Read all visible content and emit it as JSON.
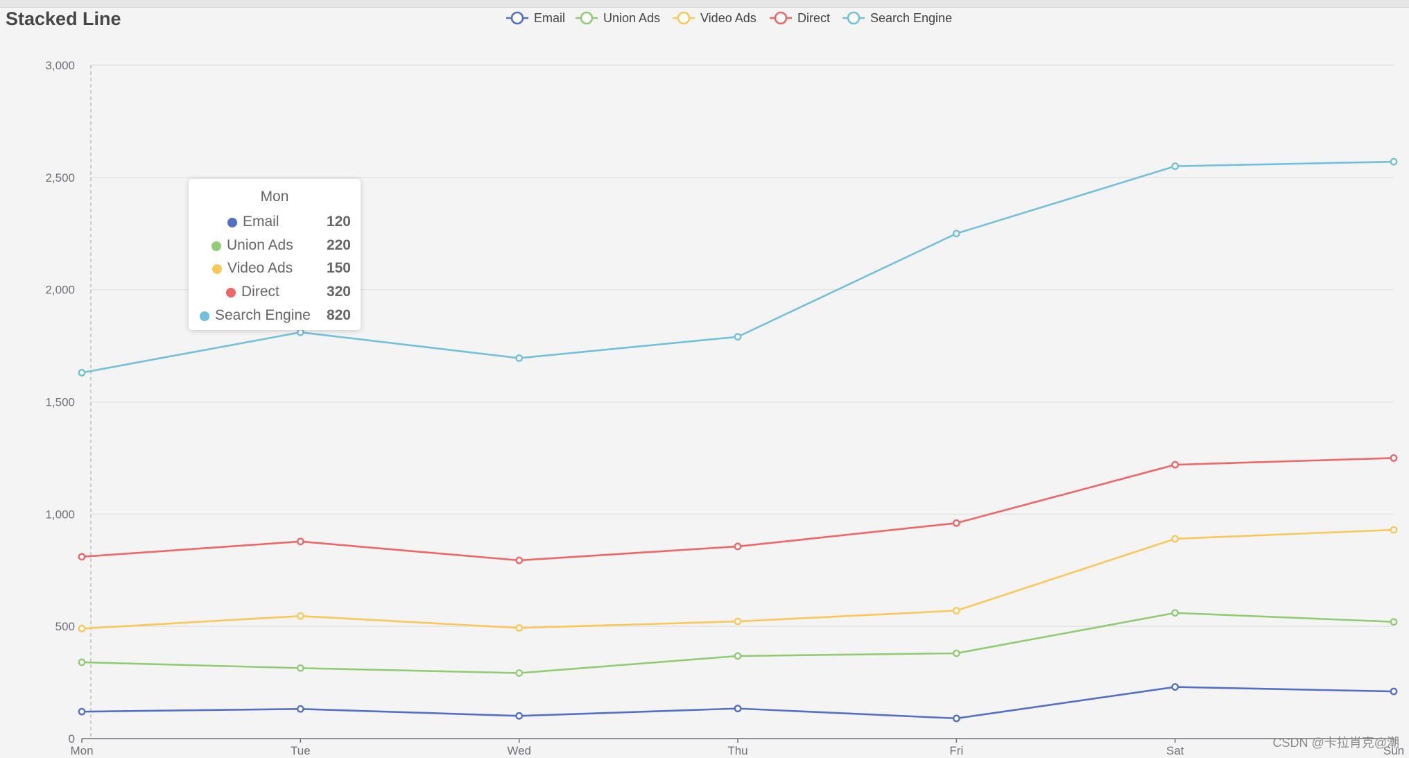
{
  "chart_data": {
    "type": "line",
    "title": "Stacked Line",
    "stacked": true,
    "categories": [
      "Mon",
      "Tue",
      "Wed",
      "Thu",
      "Fri",
      "Sat",
      "Sun"
    ],
    "ylim": [
      0,
      3000
    ],
    "y_ticks": [
      "0",
      "500",
      "1,000",
      "1,500",
      "2,000",
      "2,500",
      "3,000"
    ],
    "grid": true,
    "legend_position": "top-center",
    "series": [
      {
        "name": "Email",
        "color": "#5470c6",
        "values": [
          120,
          132,
          101,
          134,
          90,
          230,
          210
        ]
      },
      {
        "name": "Union Ads",
        "color": "#91cc75",
        "values": [
          220,
          182,
          191,
          234,
          290,
          330,
          310
        ]
      },
      {
        "name": "Video Ads",
        "color": "#fac858",
        "values": [
          150,
          232,
          201,
          154,
          190,
          330,
          410
        ]
      },
      {
        "name": "Direct",
        "color": "#ee6666",
        "values": [
          320,
          332,
          301,
          334,
          390,
          330,
          320
        ]
      },
      {
        "name": "Search Engine",
        "color": "#73c0de",
        "values": [
          820,
          932,
          901,
          934,
          1290,
          1330,
          1320
        ]
      }
    ]
  },
  "tooltip": {
    "header": "Mon",
    "rows": [
      {
        "name": "Email",
        "value": "120",
        "color": "#5470c6"
      },
      {
        "name": "Union Ads",
        "value": "220",
        "color": "#91cc75"
      },
      {
        "name": "Video Ads",
        "value": "150",
        "color": "#fac858"
      },
      {
        "name": "Direct",
        "value": "320",
        "color": "#ee6666"
      },
      {
        "name": "Search Engine",
        "value": "820",
        "color": "#73c0de"
      }
    ]
  },
  "watermark": "CSDN @卡拉肖克@潮"
}
